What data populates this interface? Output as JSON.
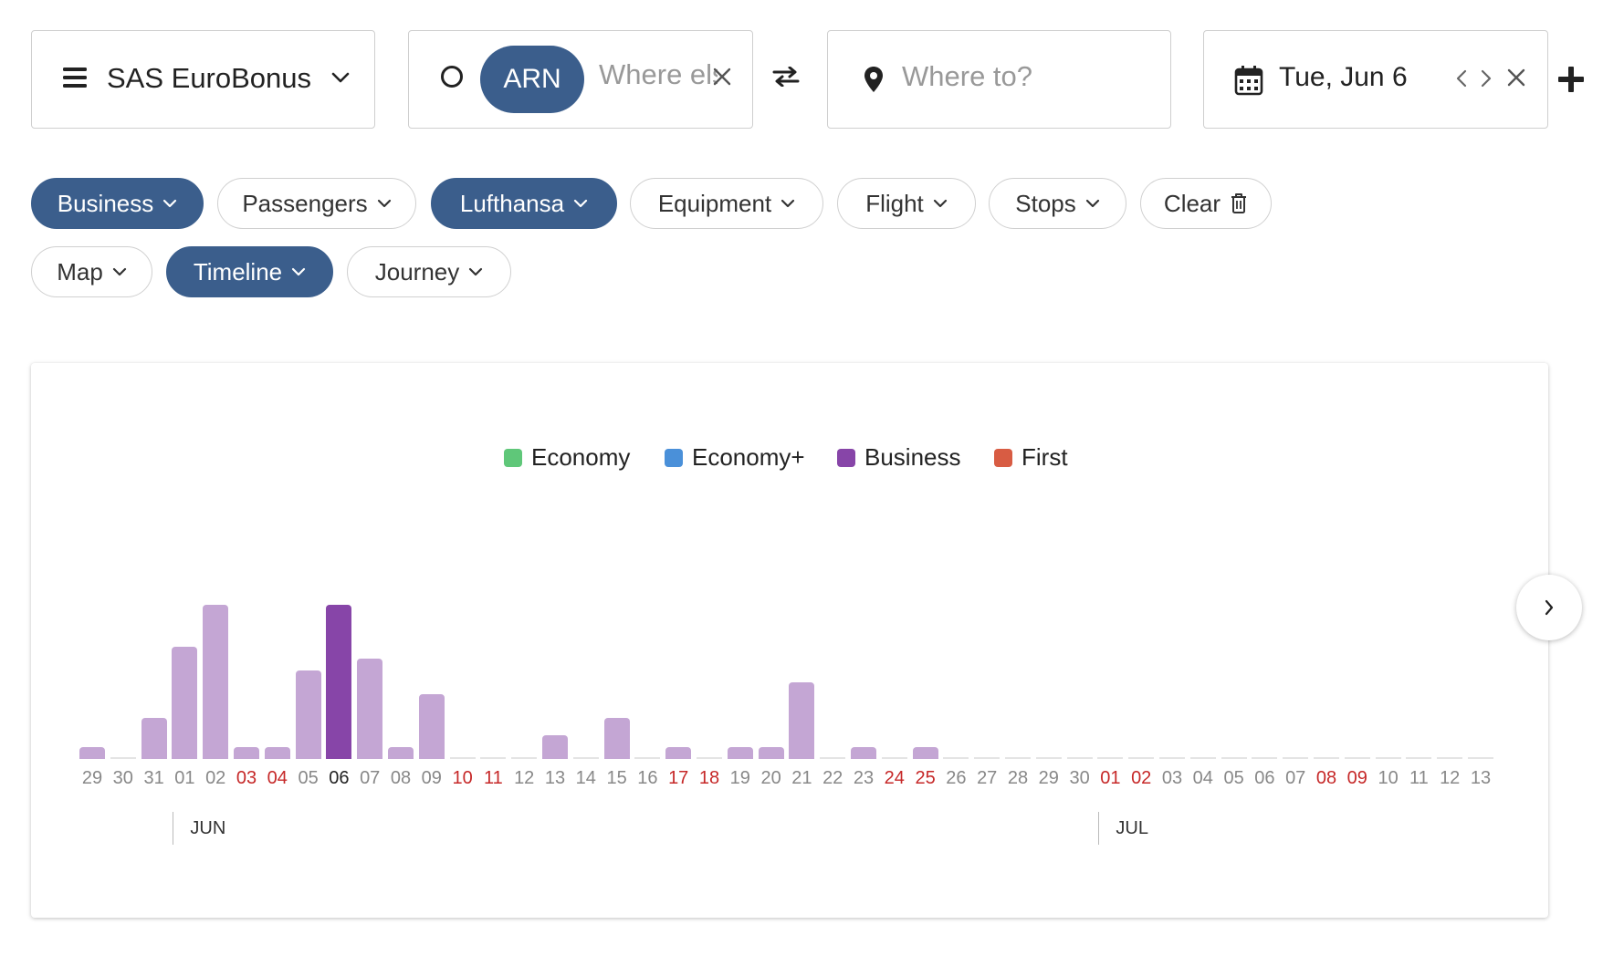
{
  "search": {
    "program_label": "SAS EuroBonus",
    "origin_chip": "ARN",
    "origin_placeholder": "Where else?",
    "destination_placeholder": "Where to?",
    "date_label": "Tue, Jun 6"
  },
  "filters": [
    {
      "name": "Business",
      "active": true
    },
    {
      "name": "Passengers",
      "active": false
    },
    {
      "name": "Lufthansa",
      "active": true
    },
    {
      "name": "Equipment",
      "active": false
    },
    {
      "name": "Flight",
      "active": false
    },
    {
      "name": "Stops",
      "active": false
    },
    {
      "name": "Clear",
      "active": false
    },
    {
      "name": "Map",
      "active": false
    },
    {
      "name": "Timeline",
      "active": true
    },
    {
      "name": "Journey",
      "active": false
    }
  ],
  "colors": {
    "accent": "#3b5e8c",
    "economy": "#5fc779",
    "economy_plus": "#4a90d9",
    "business": "#8745a8",
    "business_light": "#c4a6d4",
    "first": "#d85c43",
    "weekend": "#c62828"
  },
  "chart_data": {
    "type": "bar",
    "legend": [
      "Economy",
      "Economy+",
      "Business",
      "First"
    ],
    "legend_position": "top-center",
    "categories": [
      "29",
      "30",
      "31",
      "01",
      "02",
      "03",
      "04",
      "05",
      "06",
      "07",
      "08",
      "09",
      "10",
      "11",
      "12",
      "13",
      "14",
      "15",
      "16",
      "17",
      "18",
      "19",
      "20",
      "21",
      "22",
      "23",
      "24",
      "25",
      "26",
      "27",
      "28",
      "29",
      "30",
      "01",
      "02",
      "03",
      "04",
      "05",
      "06",
      "07",
      "08",
      "09",
      "10",
      "11",
      "12",
      "13"
    ],
    "weekend_indices": [
      5,
      6,
      12,
      13,
      19,
      20,
      26,
      27,
      33,
      34,
      40,
      41
    ],
    "selected_index": 8,
    "series": [
      {
        "name": "Business",
        "values": [
          1,
          0,
          3.5,
          9.5,
          13,
          1,
          1,
          7.5,
          13,
          8.5,
          1,
          5.5,
          0,
          0,
          0,
          2,
          0,
          3.5,
          0,
          1,
          0,
          1,
          1,
          6.5,
          0,
          1,
          0,
          1,
          0,
          0,
          0,
          0,
          0,
          0,
          0,
          0,
          0,
          0,
          0,
          0,
          0,
          0,
          0,
          0,
          0,
          0
        ]
      }
    ],
    "ylim": [
      0,
      14
    ],
    "month_labels": [
      {
        "label": "JUN",
        "start_index": 3
      },
      {
        "label": "JUL",
        "start_index": 33
      }
    ],
    "grid": false
  },
  "icons": {
    "menu": "hamburger-icon",
    "chevron": "chevron-down-icon",
    "origin": "circle-icon",
    "clear": "close-icon",
    "swap": "swap-icon",
    "pin": "map-pin-icon",
    "calendar": "calendar-icon",
    "add": "plus-icon",
    "trash": "trash-icon",
    "next": "chevron-right-icon"
  }
}
